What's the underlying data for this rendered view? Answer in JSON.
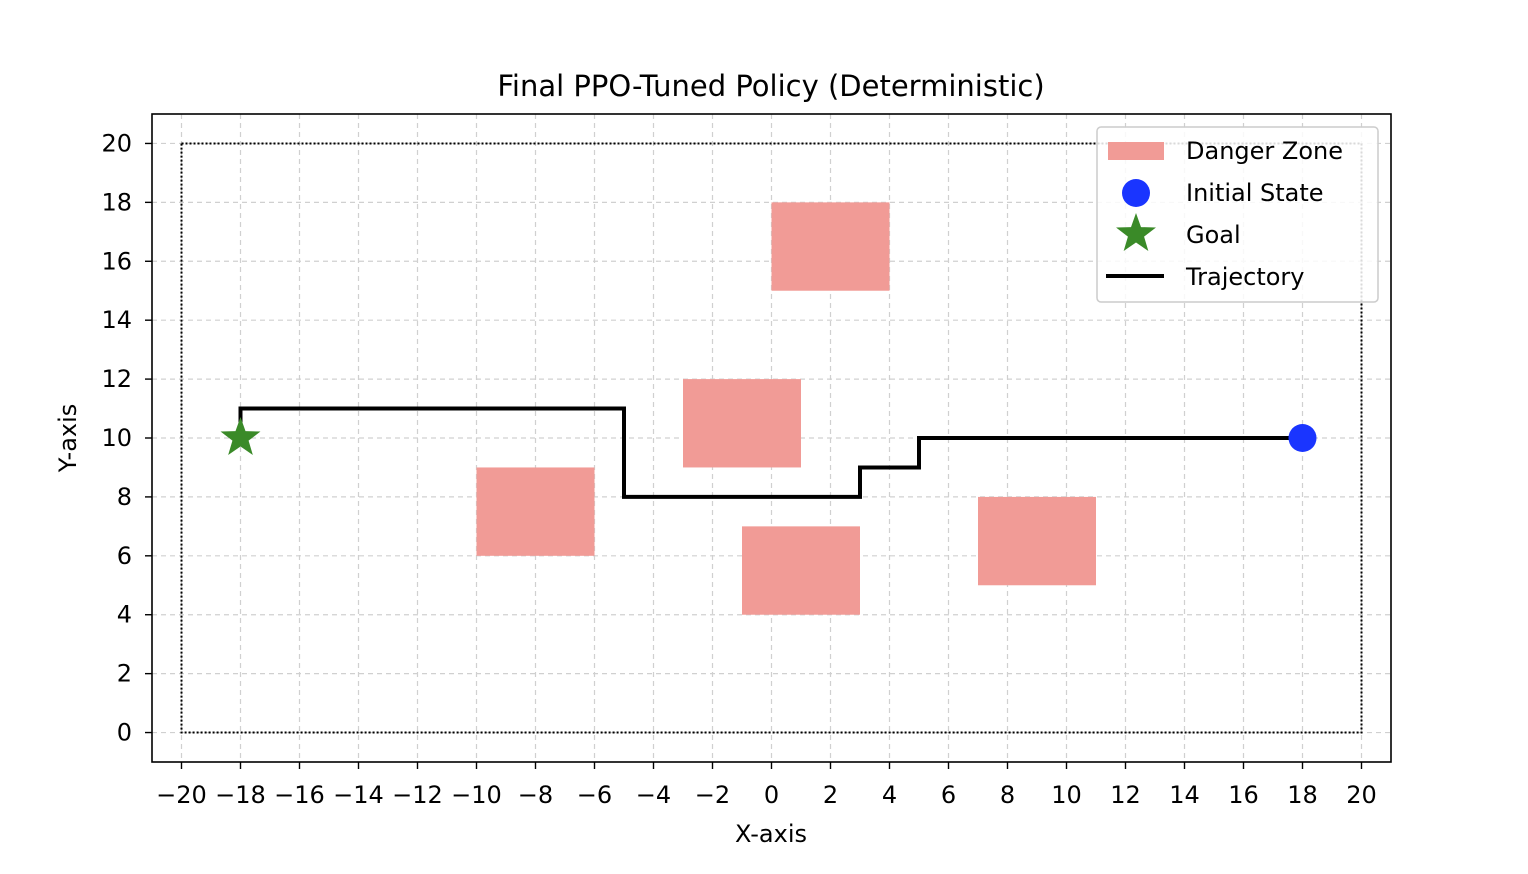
{
  "chart_data": {
    "type": "line",
    "title": "Final PPO-Tuned Policy (Deterministic)",
    "xlabel": "X-axis",
    "ylabel": "Y-axis",
    "xlim": [
      -21,
      21
    ],
    "ylim": [
      -1,
      21
    ],
    "xticks": [
      -20,
      -18,
      -16,
      -14,
      -12,
      -10,
      -8,
      -6,
      -4,
      -2,
      0,
      2,
      4,
      6,
      8,
      10,
      12,
      14,
      16,
      18,
      20
    ],
    "yticks": [
      0,
      2,
      4,
      6,
      8,
      10,
      12,
      14,
      16,
      18,
      20
    ],
    "grid": true,
    "legend_position": "top-right",
    "boundary": {
      "x": [
        -20,
        20
      ],
      "y": [
        0,
        20
      ]
    },
    "danger_zones": [
      {
        "x": 0,
        "y": 15,
        "w": 4,
        "h": 3
      },
      {
        "x": -3,
        "y": 9,
        "w": 4,
        "h": 3
      },
      {
        "x": -10,
        "y": 6,
        "w": 4,
        "h": 3
      },
      {
        "x": -1,
        "y": 4,
        "w": 4,
        "h": 3
      },
      {
        "x": 7,
        "y": 5,
        "w": 4,
        "h": 3
      }
    ],
    "initial_state": {
      "x": 18,
      "y": 10
    },
    "goal": {
      "x": -18,
      "y": 10
    },
    "trajectory": {
      "x": [
        18,
        5,
        5,
        3,
        3,
        -5,
        -5,
        -18,
        -18
      ],
      "y": [
        10,
        10,
        9,
        9,
        8,
        8,
        11,
        11,
        10
      ]
    },
    "legend": [
      "Danger Zone",
      "Initial State",
      "Goal",
      "Trajectory"
    ],
    "colors": {
      "danger_zone": "#f19b96",
      "initial_state": "#1a35ff",
      "goal": "#3a8a28",
      "trajectory": "#000000",
      "grid": "#d0d0d0"
    }
  }
}
